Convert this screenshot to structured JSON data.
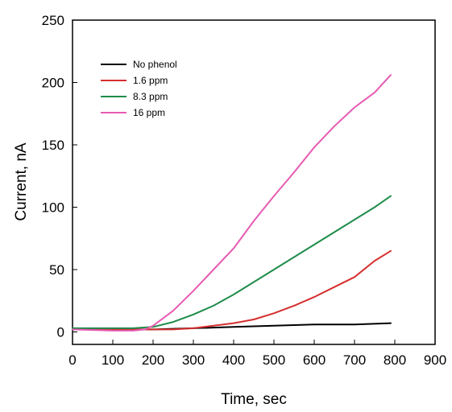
{
  "chart_data": {
    "type": "line",
    "xlabel": "Time, sec",
    "ylabel": "Current, nA",
    "xlim": [
      0,
      900
    ],
    "ylim": [
      -10,
      250
    ],
    "xticks": [
      0,
      100,
      200,
      300,
      400,
      500,
      600,
      700,
      800,
      900
    ],
    "yticks": [
      0,
      50,
      100,
      150,
      200,
      250
    ],
    "grid": false,
    "legend_position": "top-left",
    "series": [
      {
        "name": "No phenol",
        "color": "#000000",
        "x": [
          0,
          100,
          200,
          300,
          400,
          500,
          600,
          700,
          790
        ],
        "y": [
          2,
          2,
          2,
          3,
          4,
          5,
          6,
          6,
          7
        ]
      },
      {
        "name": "1.6  ppm",
        "color": "#d62e2e",
        "x": [
          0,
          100,
          150,
          200,
          250,
          300,
          350,
          400,
          450,
          500,
          550,
          600,
          650,
          700,
          750,
          790
        ],
        "y": [
          3,
          2,
          2,
          2,
          2,
          3,
          5,
          7,
          10,
          15,
          21,
          28,
          36,
          44,
          57,
          65
        ]
      },
      {
        "name": "8.3  ppm",
        "color": "#1f8c4a",
        "x": [
          0,
          100,
          150,
          200,
          250,
          300,
          350,
          400,
          450,
          500,
          550,
          600,
          650,
          700,
          750,
          790
        ],
        "y": [
          3,
          3,
          3,
          4,
          8,
          14,
          21,
          30,
          40,
          50,
          60,
          70,
          80,
          90,
          100,
          109
        ]
      },
      {
        "name": "16   ppm",
        "color": "#e65bb3",
        "x": [
          0,
          100,
          150,
          180,
          200,
          250,
          300,
          350,
          400,
          450,
          500,
          550,
          600,
          650,
          700,
          750,
          790
        ],
        "y": [
          2,
          1,
          1,
          2,
          5,
          17,
          33,
          50,
          67,
          89,
          109,
          128,
          148,
          165,
          180,
          192,
          206
        ]
      }
    ]
  }
}
